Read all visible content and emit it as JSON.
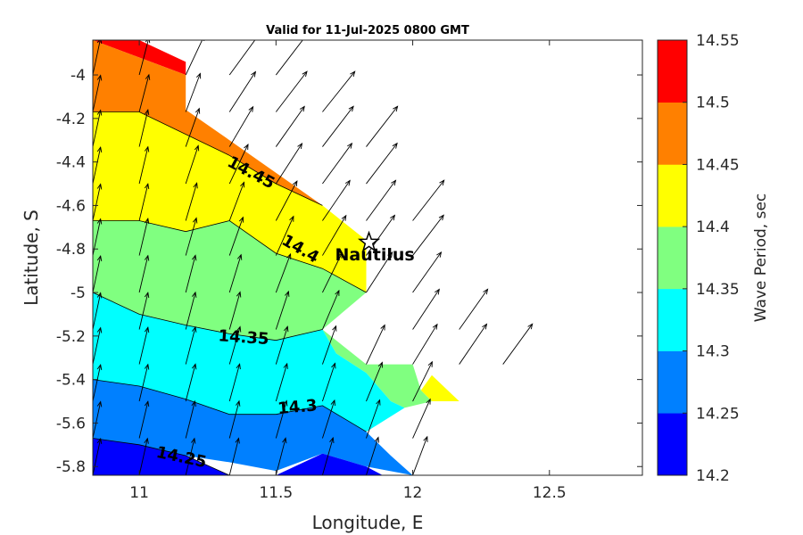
{
  "chart_data": {
    "type": "contour",
    "title": "Valid for 11-Jul-2025 0800 GMT",
    "xlabel": "Longitude, E",
    "ylabel": "Latitude, S",
    "xlim": [
      10.83,
      12.84
    ],
    "ylim": [
      -5.84,
      -3.84
    ],
    "xticks": [
      11,
      11.5,
      12,
      12.5
    ],
    "xtick_labels": [
      "11",
      "11.5",
      "12",
      "12.5"
    ],
    "yticks": [
      -4,
      -4.2,
      -4.4,
      -4.6,
      -4.8,
      -5,
      -5.2,
      -5.4,
      -5.6,
      -5.8
    ],
    "ytick_labels": [
      "-4",
      "-4.2",
      "-4.4",
      "-4.6",
      "-4.8",
      "-5",
      "-5.2",
      "-5.4",
      "-5.6",
      "-5.8"
    ],
    "colorbar": {
      "label": "Wave Period, sec",
      "levels": [
        14.2,
        14.25,
        14.3,
        14.35,
        14.4,
        14.45,
        14.5,
        14.55
      ],
      "level_labels": [
        "14.2",
        "14.25",
        "14.3",
        "14.35",
        "14.4",
        "14.45",
        "14.5",
        "14.55"
      ],
      "colors": [
        "#0000ff",
        "#0080ff",
        "#00ffff",
        "#80ff80",
        "#ffff00",
        "#ff8000",
        "#ff0000"
      ]
    },
    "bands": [
      {
        "range": [
          14.5,
          14.55
        ],
        "color": "#ff0000",
        "points": [
          [
            10.83,
            -3.84
          ],
          [
            11.0,
            -3.84
          ],
          [
            11.17,
            -3.94
          ],
          [
            11.17,
            -4.0
          ],
          [
            11.17,
            -4.0
          ],
          [
            11.0,
            -3.92
          ],
          [
            10.83,
            -3.84
          ]
        ]
      },
      {
        "range": [
          14.45,
          14.5
        ],
        "color": "#ff8000",
        "points": [
          [
            10.83,
            -3.84
          ],
          [
            11.0,
            -3.92
          ],
          [
            11.17,
            -4.0
          ],
          [
            11.17,
            -4.16
          ],
          [
            11.33,
            -4.3
          ],
          [
            11.67,
            -4.6
          ],
          [
            11.5,
            -4.5
          ],
          [
            11.33,
            -4.37
          ],
          [
            11.0,
            -4.23
          ],
          [
            10.83,
            -4.17
          ]
        ]
      },
      {
        "range": [
          14.4,
          14.45
        ],
        "color": "#ffff00",
        "points": [
          [
            10.83,
            -4.17
          ],
          [
            11.0,
            -4.17
          ],
          [
            11.33,
            -4.37
          ],
          [
            11.5,
            -4.5
          ],
          [
            11.67,
            -4.6
          ],
          [
            11.83,
            -4.76
          ],
          [
            11.83,
            -5.0
          ],
          [
            11.67,
            -4.89
          ],
          [
            11.5,
            -4.82
          ],
          [
            11.33,
            -4.67
          ],
          [
            11.17,
            -4.72
          ],
          [
            11.0,
            -4.67
          ],
          [
            10.83,
            -4.67
          ]
        ]
      },
      {
        "range": [
          14.4,
          14.45
        ],
        "color": "#ffff00",
        "points": [
          [
            12.07,
            -5.38
          ],
          [
            12.17,
            -5.5
          ],
          [
            12.07,
            -5.5
          ],
          [
            12.03,
            -5.45
          ]
        ]
      },
      {
        "range": [
          14.35,
          14.4
        ],
        "color": "#80ff80",
        "points": [
          [
            10.83,
            -4.67
          ],
          [
            11.0,
            -4.67
          ],
          [
            11.17,
            -4.72
          ],
          [
            11.33,
            -4.67
          ],
          [
            11.5,
            -4.82
          ],
          [
            11.67,
            -4.89
          ],
          [
            11.83,
            -5.0
          ],
          [
            11.67,
            -5.17
          ],
          [
            11.5,
            -5.22
          ],
          [
            11.33,
            -5.19
          ],
          [
            11.17,
            -5.15
          ],
          [
            11.0,
            -5.1
          ],
          [
            10.83,
            -5.0
          ]
        ]
      },
      {
        "range": [
          14.35,
          14.4
        ],
        "color": "#80ff80",
        "points": [
          [
            11.67,
            -5.17
          ],
          [
            11.83,
            -5.33
          ],
          [
            12.0,
            -5.33
          ],
          [
            12.03,
            -5.45
          ],
          [
            12.07,
            -5.5
          ],
          [
            11.97,
            -5.53
          ],
          [
            11.92,
            -5.5
          ],
          [
            11.83,
            -5.37
          ],
          [
            11.72,
            -5.28
          ]
        ]
      },
      {
        "range": [
          14.3,
          14.35
        ],
        "color": "#00ffff",
        "points": [
          [
            10.83,
            -5.0
          ],
          [
            11.0,
            -5.1
          ],
          [
            11.17,
            -5.15
          ],
          [
            11.33,
            -5.19
          ],
          [
            11.5,
            -5.22
          ],
          [
            11.67,
            -5.17
          ],
          [
            11.72,
            -5.28
          ],
          [
            11.83,
            -5.37
          ],
          [
            11.92,
            -5.5
          ],
          [
            11.97,
            -5.53
          ],
          [
            11.83,
            -5.64
          ],
          [
            11.67,
            -5.52
          ],
          [
            11.5,
            -5.56
          ],
          [
            11.33,
            -5.56
          ],
          [
            11.17,
            -5.49
          ],
          [
            11.0,
            -5.43
          ],
          [
            10.83,
            -5.4
          ]
        ]
      },
      {
        "range": [
          14.25,
          14.3
        ],
        "color": "#0080ff",
        "points": [
          [
            10.83,
            -5.4
          ],
          [
            11.0,
            -5.43
          ],
          [
            11.17,
            -5.49
          ],
          [
            11.33,
            -5.56
          ],
          [
            11.5,
            -5.56
          ],
          [
            11.67,
            -5.52
          ],
          [
            11.83,
            -5.64
          ],
          [
            11.83,
            -5.64
          ],
          [
            11.92,
            -5.75
          ],
          [
            12.0,
            -5.84
          ],
          [
            11.83,
            -5.8
          ],
          [
            11.67,
            -5.74
          ],
          [
            11.5,
            -5.82
          ],
          [
            11.33,
            -5.78
          ],
          [
            11.17,
            -5.75
          ],
          [
            11.0,
            -5.7
          ],
          [
            10.83,
            -5.67
          ]
        ]
      },
      {
        "range": [
          14.2,
          14.25
        ],
        "color": "#0000ff",
        "points": [
          [
            10.83,
            -5.67
          ],
          [
            11.0,
            -5.7
          ],
          [
            11.17,
            -5.75
          ],
          [
            11.33,
            -5.84
          ],
          [
            10.83,
            -5.84
          ]
        ]
      },
      {
        "range": [
          14.2,
          14.25
        ],
        "color": "#0000ff",
        "points": [
          [
            11.5,
            -5.84
          ],
          [
            11.67,
            -5.74
          ],
          [
            11.83,
            -5.8
          ],
          [
            11.89,
            -5.84
          ]
        ]
      }
    ],
    "contour_lines": [
      {
        "level": "14.45",
        "points": [
          [
            10.83,
            -4.17
          ],
          [
            11.0,
            -4.17
          ],
          [
            11.33,
            -4.37
          ],
          [
            11.5,
            -4.5
          ],
          [
            11.67,
            -4.6
          ]
        ]
      },
      {
        "level": "14.4",
        "points": [
          [
            10.83,
            -4.67
          ],
          [
            11.0,
            -4.67
          ],
          [
            11.17,
            -4.72
          ],
          [
            11.33,
            -4.67
          ],
          [
            11.5,
            -4.82
          ],
          [
            11.67,
            -4.89
          ],
          [
            11.83,
            -5.0
          ]
        ]
      },
      {
        "level": "14.35",
        "points": [
          [
            10.83,
            -5.0
          ],
          [
            11.0,
            -5.1
          ],
          [
            11.17,
            -5.15
          ],
          [
            11.33,
            -5.19
          ],
          [
            11.5,
            -5.22
          ],
          [
            11.67,
            -5.17
          ]
        ]
      },
      {
        "level": "14.3",
        "points": [
          [
            10.83,
            -5.4
          ],
          [
            11.0,
            -5.43
          ],
          [
            11.17,
            -5.49
          ],
          [
            11.33,
            -5.56
          ],
          [
            11.5,
            -5.56
          ],
          [
            11.67,
            -5.52
          ],
          [
            11.83,
            -5.64
          ]
        ]
      },
      {
        "level": "14.25",
        "points": [
          [
            10.83,
            -5.67
          ],
          [
            11.0,
            -5.7
          ],
          [
            11.17,
            -5.75
          ],
          [
            11.33,
            -5.84
          ]
        ]
      }
    ],
    "contour_labels": [
      {
        "text": "14.45",
        "x": 11.4,
        "y": -4.47,
        "angle": 28
      },
      {
        "text": "14.4",
        "x": 11.58,
        "y": -4.82,
        "angle": 30
      },
      {
        "text": "14.35",
        "x": 11.38,
        "y": -5.23,
        "angle": 4
      },
      {
        "text": "14.3",
        "x": 11.58,
        "y": -5.55,
        "angle": -5
      },
      {
        "text": "14.25",
        "x": 11.15,
        "y": -5.78,
        "angle": 12
      }
    ],
    "station": {
      "name": "Nautilus",
      "lon": 11.84,
      "lat": -4.77
    },
    "vector_field": {
      "lon": [
        10.83,
        11.0,
        11.17,
        11.33,
        11.5,
        11.67,
        11.83,
        12.0,
        12.17,
        12.33
      ],
      "lat": [
        -3.84,
        -4.0,
        -4.17,
        -4.33,
        -4.5,
        -4.67,
        -4.83,
        -5.0,
        -5.17,
        -5.33,
        -5.5,
        -5.67,
        -5.84
      ],
      "arrows": [
        [
          10.83,
          -3.84,
          0.18
        ],
        [
          11.0,
          -3.84,
          0.25
        ],
        [
          11.17,
          -3.84,
          0.45
        ],
        [
          11.33,
          -3.84,
          0.6
        ],
        [
          10.83,
          -4.0,
          0.18
        ],
        [
          11.0,
          -4.0,
          0.22
        ],
        [
          11.17,
          -4.0,
          0.4
        ],
        [
          11.33,
          -4.0,
          0.62
        ],
        [
          11.5,
          -4.0,
          0.65
        ],
        [
          10.83,
          -4.17,
          0.18
        ],
        [
          11.0,
          -4.17,
          0.22
        ],
        [
          11.17,
          -4.17,
          0.32
        ],
        [
          11.33,
          -4.17,
          0.55
        ],
        [
          11.5,
          -4.17,
          0.65
        ],
        [
          11.67,
          -4.17,
          0.68
        ],
        [
          10.83,
          -4.33,
          0.18
        ],
        [
          11.0,
          -4.33,
          0.2
        ],
        [
          11.17,
          -4.33,
          0.3
        ],
        [
          11.33,
          -4.33,
          0.5
        ],
        [
          11.5,
          -4.33,
          0.6
        ],
        [
          11.67,
          -4.33,
          0.65
        ],
        [
          11.83,
          -4.33,
          0.66
        ],
        [
          10.83,
          -4.5,
          0.18
        ],
        [
          11.0,
          -4.5,
          0.2
        ],
        [
          11.17,
          -4.5,
          0.28
        ],
        [
          11.33,
          -4.5,
          0.4
        ],
        [
          11.5,
          -4.5,
          0.55
        ],
        [
          11.67,
          -4.5,
          0.62
        ],
        [
          11.83,
          -4.5,
          0.65
        ],
        [
          10.83,
          -4.67,
          0.18
        ],
        [
          11.0,
          -4.67,
          0.2
        ],
        [
          11.17,
          -4.67,
          0.25
        ],
        [
          11.33,
          -4.67,
          0.32
        ],
        [
          11.5,
          -4.67,
          0.45
        ],
        [
          11.67,
          -4.67,
          0.58
        ],
        [
          11.83,
          -4.67,
          0.62
        ],
        [
          12.0,
          -4.67,
          0.66
        ],
        [
          10.83,
          -4.83,
          0.18
        ],
        [
          11.0,
          -4.83,
          0.2
        ],
        [
          11.17,
          -4.83,
          0.24
        ],
        [
          11.33,
          -4.83,
          0.3
        ],
        [
          11.5,
          -4.83,
          0.38
        ],
        [
          11.67,
          -4.83,
          0.5
        ],
        [
          11.83,
          -4.83,
          0.6
        ],
        [
          12.0,
          -4.83,
          0.65
        ],
        [
          10.83,
          -5.0,
          0.18
        ],
        [
          11.0,
          -5.0,
          0.2
        ],
        [
          11.17,
          -5.0,
          0.22
        ],
        [
          11.33,
          -5.0,
          0.26
        ],
        [
          11.5,
          -5.0,
          0.32
        ],
        [
          11.67,
          -5.0,
          0.42
        ],
        [
          11.83,
          -5.0,
          0.55
        ],
        [
          12.0,
          -5.0,
          0.6
        ],
        [
          10.83,
          -5.17,
          0.18
        ],
        [
          11.0,
          -5.17,
          0.2
        ],
        [
          11.17,
          -5.17,
          0.22
        ],
        [
          11.33,
          -5.17,
          0.24
        ],
        [
          11.5,
          -5.17,
          0.28
        ],
        [
          11.67,
          -5.17,
          0.36
        ],
        [
          12.0,
          -5.17,
          0.56
        ],
        [
          12.17,
          -5.17,
          0.6
        ],
        [
          10.83,
          -5.33,
          0.18
        ],
        [
          11.0,
          -5.33,
          0.2
        ],
        [
          11.17,
          -5.33,
          0.22
        ],
        [
          11.33,
          -5.33,
          0.24
        ],
        [
          11.5,
          -5.33,
          0.26
        ],
        [
          11.67,
          -5.33,
          0.3
        ],
        [
          11.83,
          -5.33,
          0.4
        ],
        [
          12.0,
          -5.33,
          0.52
        ],
        [
          12.17,
          -5.33,
          0.58
        ],
        [
          12.33,
          -5.33,
          0.62
        ],
        [
          10.83,
          -5.5,
          0.18
        ],
        [
          11.0,
          -5.5,
          0.2
        ],
        [
          11.17,
          -5.5,
          0.22
        ],
        [
          11.33,
          -5.5,
          0.23
        ],
        [
          11.5,
          -5.5,
          0.25
        ],
        [
          11.67,
          -5.5,
          0.28
        ],
        [
          11.83,
          -5.5,
          0.35
        ],
        [
          12.0,
          -5.5,
          0.42
        ],
        [
          10.83,
          -5.67,
          0.18
        ],
        [
          11.0,
          -5.67,
          0.2
        ],
        [
          11.17,
          -5.67,
          0.21
        ],
        [
          11.33,
          -5.67,
          0.22
        ],
        [
          11.5,
          -5.67,
          0.24
        ],
        [
          11.67,
          -5.67,
          0.27
        ],
        [
          11.83,
          -5.67,
          0.3
        ],
        [
          12.0,
          -5.67,
          0.38
        ],
        [
          10.83,
          -5.84,
          0.18
        ],
        [
          11.0,
          -5.84,
          0.19
        ],
        [
          11.17,
          -5.84,
          0.2
        ],
        [
          11.33,
          -5.84,
          0.21
        ],
        [
          11.5,
          -5.84,
          0.22
        ],
        [
          11.67,
          -5.84,
          0.24
        ],
        [
          11.83,
          -5.84,
          0.27
        ],
        [
          12.0,
          -5.84,
          0.32
        ]
      ]
    }
  }
}
